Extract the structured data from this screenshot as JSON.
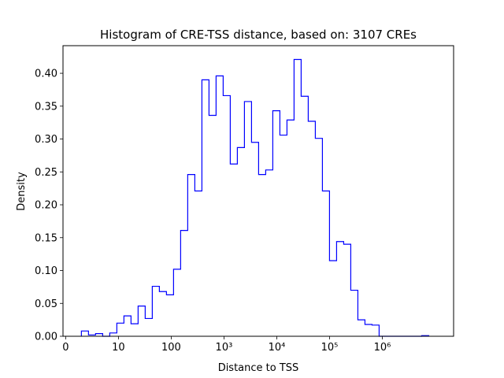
{
  "chart_data": {
    "type": "bar",
    "histtype": "step",
    "title": "Histogram of CRE-TSS distance, based on: 3107 CREs",
    "xlabel": "Distance to TSS",
    "ylabel": "Density",
    "xscale": "log10 (decades)",
    "x_bin_start_decades": 0.2985,
    "x_bin_width_decades": 0.1343,
    "xlim_decades": [
      -0.05,
      7.35
    ],
    "ylim": [
      0,
      0.442
    ],
    "color": "#0000ff",
    "x_ticks": [
      {
        "value": 0,
        "label": "0"
      },
      {
        "value": 1,
        "label": "10"
      },
      {
        "value": 2,
        "label": "100"
      },
      {
        "value": 3,
        "label": "10³"
      },
      {
        "value": 4,
        "label": "10⁴"
      },
      {
        "value": 5,
        "label": "10⁵"
      },
      {
        "value": 6,
        "label": "10⁶"
      }
    ],
    "y_ticks": [
      "0.00",
      "0.05",
      "0.10",
      "0.15",
      "0.20",
      "0.25",
      "0.30",
      "0.35",
      "0.40"
    ],
    "values": [
      0.008,
      0.002,
      0.004,
      0.0,
      0.005,
      0.02,
      0.031,
      0.019,
      0.046,
      0.027,
      0.076,
      0.068,
      0.063,
      0.102,
      0.161,
      0.246,
      0.221,
      0.39,
      0.336,
      0.396,
      0.366,
      0.262,
      0.287,
      0.357,
      0.295,
      0.246,
      0.253,
      0.343,
      0.306,
      0.329,
      0.421,
      0.365,
      0.327,
      0.301,
      0.221,
      0.115,
      0.144,
      0.14,
      0.07,
      0.025,
      0.018,
      0.017,
      0,
      0,
      0,
      0,
      0,
      0,
      0.001
    ]
  }
}
